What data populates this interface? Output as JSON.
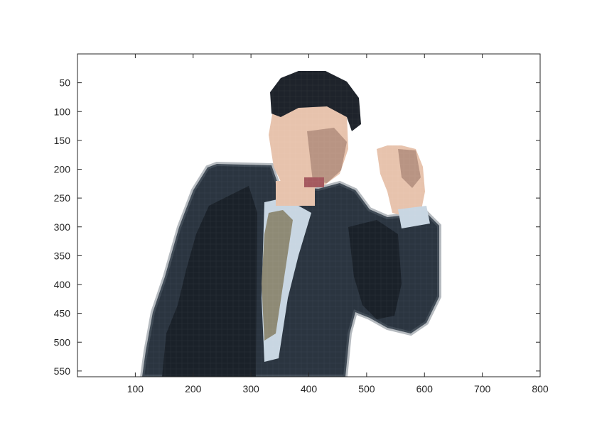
{
  "figure": {
    "image_subject": "pixelated-photo-of-man-in-suit-raising-fist",
    "xaxis": {
      "lim": [
        0,
        800
      ],
      "ticks": [
        100,
        200,
        300,
        400,
        500,
        600,
        700,
        800
      ],
      "labels": [
        "100",
        "200",
        "300",
        "400",
        "500",
        "600",
        "700",
        "800"
      ]
    },
    "yaxis": {
      "lim": [
        0,
        560
      ],
      "reversed": true,
      "ticks": [
        50,
        100,
        150,
        200,
        250,
        300,
        350,
        400,
        450,
        500,
        550
      ],
      "labels": [
        "50",
        "100",
        "150",
        "200",
        "250",
        "300",
        "350",
        "400",
        "450",
        "500",
        "550"
      ]
    },
    "colors": {
      "suit": "#2b3540",
      "suit_dark": "#1a2129",
      "suit_edge": "#5a6571",
      "hair": "#1e232b",
      "skin": "#e7c3ad",
      "skin_shadow": "#b89483",
      "mouth": "#a5595f",
      "tie": "#8e8a75",
      "shirt": "#c8d6e2"
    }
  }
}
